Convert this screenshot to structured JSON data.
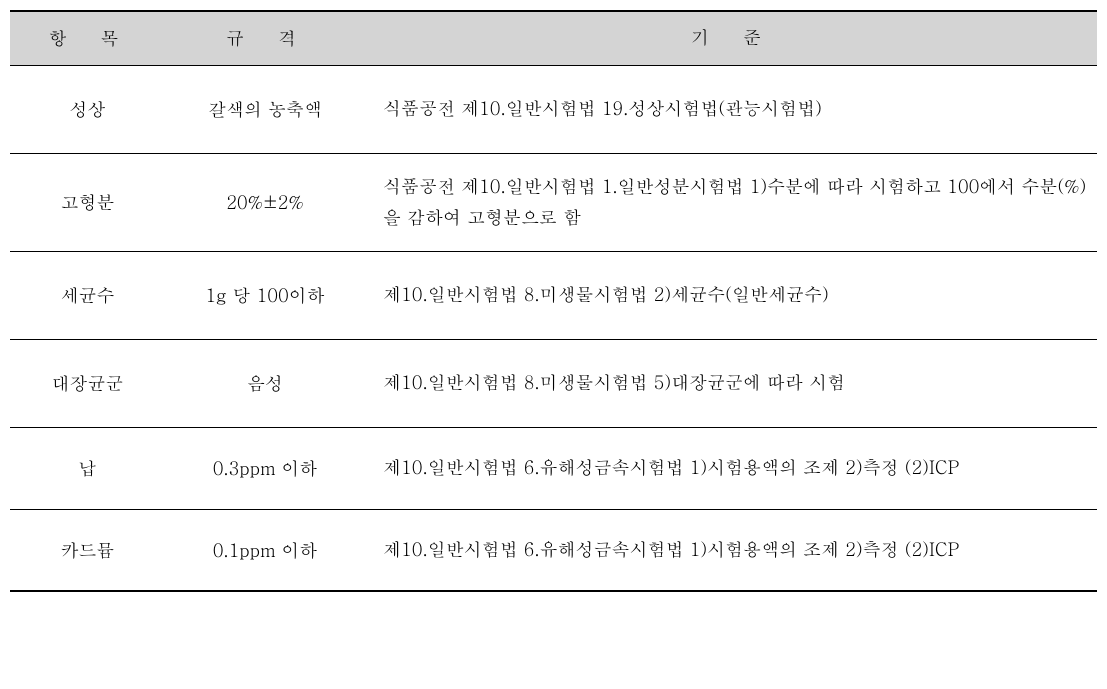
{
  "table": {
    "headers": {
      "col1": "항　목",
      "col2": "규　격",
      "col3": "기　준"
    },
    "rows": [
      {
        "item": "성상",
        "spec": "갈색의 농축액",
        "standard": "식품공전 제10.일반시험법 19.성상시험법(관능시험법)"
      },
      {
        "item": "고형분",
        "spec": "20%±2%",
        "standard": "식품공전 제10.일반시험법 1.일반성분시험법 1)수분에 따라 시험하고 100에서 수분(%)을 감하여 고형분으로 함"
      },
      {
        "item": "세균수",
        "spec": "1g 당 100이하",
        "standard": "제10.일반시험법 8.미생물시험법 2)세균수(일반세균수)"
      },
      {
        "item": "대장균군",
        "spec": "음성",
        "standard": "제10.일반시험법 8.미생물시험법 5)대장균군에 따라 시험"
      },
      {
        "item": "납",
        "spec": "0.3ppm 이하",
        "standard": "제10.일반시험법 6.유해성금속시험법 1)시험용액의 조제 2)측정 (2)ICP"
      },
      {
        "item": "카드뮴",
        "spec": "0.1ppm 이하",
        "standard": "제10.일반시험법 6.유해성금속시험법 1)시험용액의 조제 2)측정 (2)ICP"
      }
    ]
  }
}
